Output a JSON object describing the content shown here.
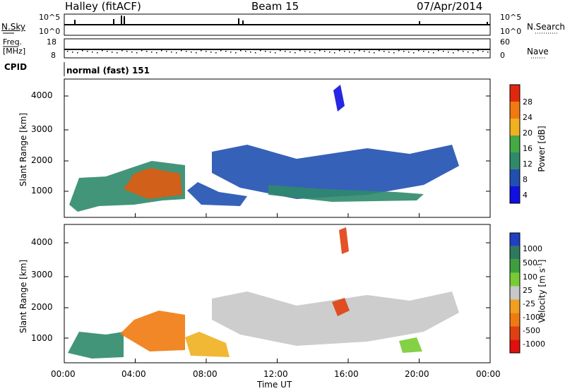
{
  "header": {
    "station": "Halley (fitACF)",
    "beam": "Beam 15",
    "date": "07/Apr/2014"
  },
  "top_panels": {
    "nsky_label": "N.Sky",
    "nsearch_label": "N.Search",
    "nsky_ticks": [
      "10^5",
      "10^0"
    ],
    "nsearch_ticks": [
      "10^5",
      "10^0"
    ],
    "freq_label_line1": "Freq.",
    "freq_label_line2": "[MHz]",
    "freq_ticks": [
      "18",
      "8"
    ],
    "nave_label": "Nave",
    "nave_ticks": [
      "60",
      "0"
    ],
    "cpid_label": "CPID",
    "cpid_value": "normal (fast) 151"
  },
  "chart_data": [
    {
      "type": "heatmap",
      "title": "",
      "ylabel": "Slant Range [km]",
      "xlabel": "",
      "y_ticks": [
        "1000",
        "2000",
        "3000",
        "4000"
      ],
      "ylim": [
        180,
        4550
      ],
      "colorbar": {
        "label": "Power [dB]",
        "ticks": [
          "4",
          "8",
          "12",
          "16",
          "20",
          "24",
          "28"
        ],
        "colors": [
          "#1010e0",
          "#2050b0",
          "#2f8a6c",
          "#44aa44",
          "#f0b020",
          "#f07a10",
          "#e02810"
        ]
      }
    },
    {
      "type": "heatmap",
      "title": "",
      "ylabel": "Slant Range [km]",
      "xlabel": "Time UT",
      "x_ticks": [
        "00:00",
        "04:00",
        "08:00",
        "12:00",
        "16:00",
        "20:00",
        "00:00"
      ],
      "y_ticks": [
        "1000",
        "2000",
        "3000",
        "4000"
      ],
      "ylim": [
        180,
        4550
      ],
      "colorbar": {
        "label": "Velocity [m s",
        "label_sup": "-1",
        "label_end": "]",
        "ticks": [
          "1000",
          "500",
          "100",
          "25",
          "-25",
          "-100",
          "-500",
          "-1000"
        ],
        "colors": [
          "#2040c0",
          "#2f7a5c",
          "#3e9e3e",
          "#77cc33",
          "#c8c8c8",
          "#f0a020",
          "#f07a10",
          "#e04010",
          "#e01010"
        ]
      }
    }
  ]
}
